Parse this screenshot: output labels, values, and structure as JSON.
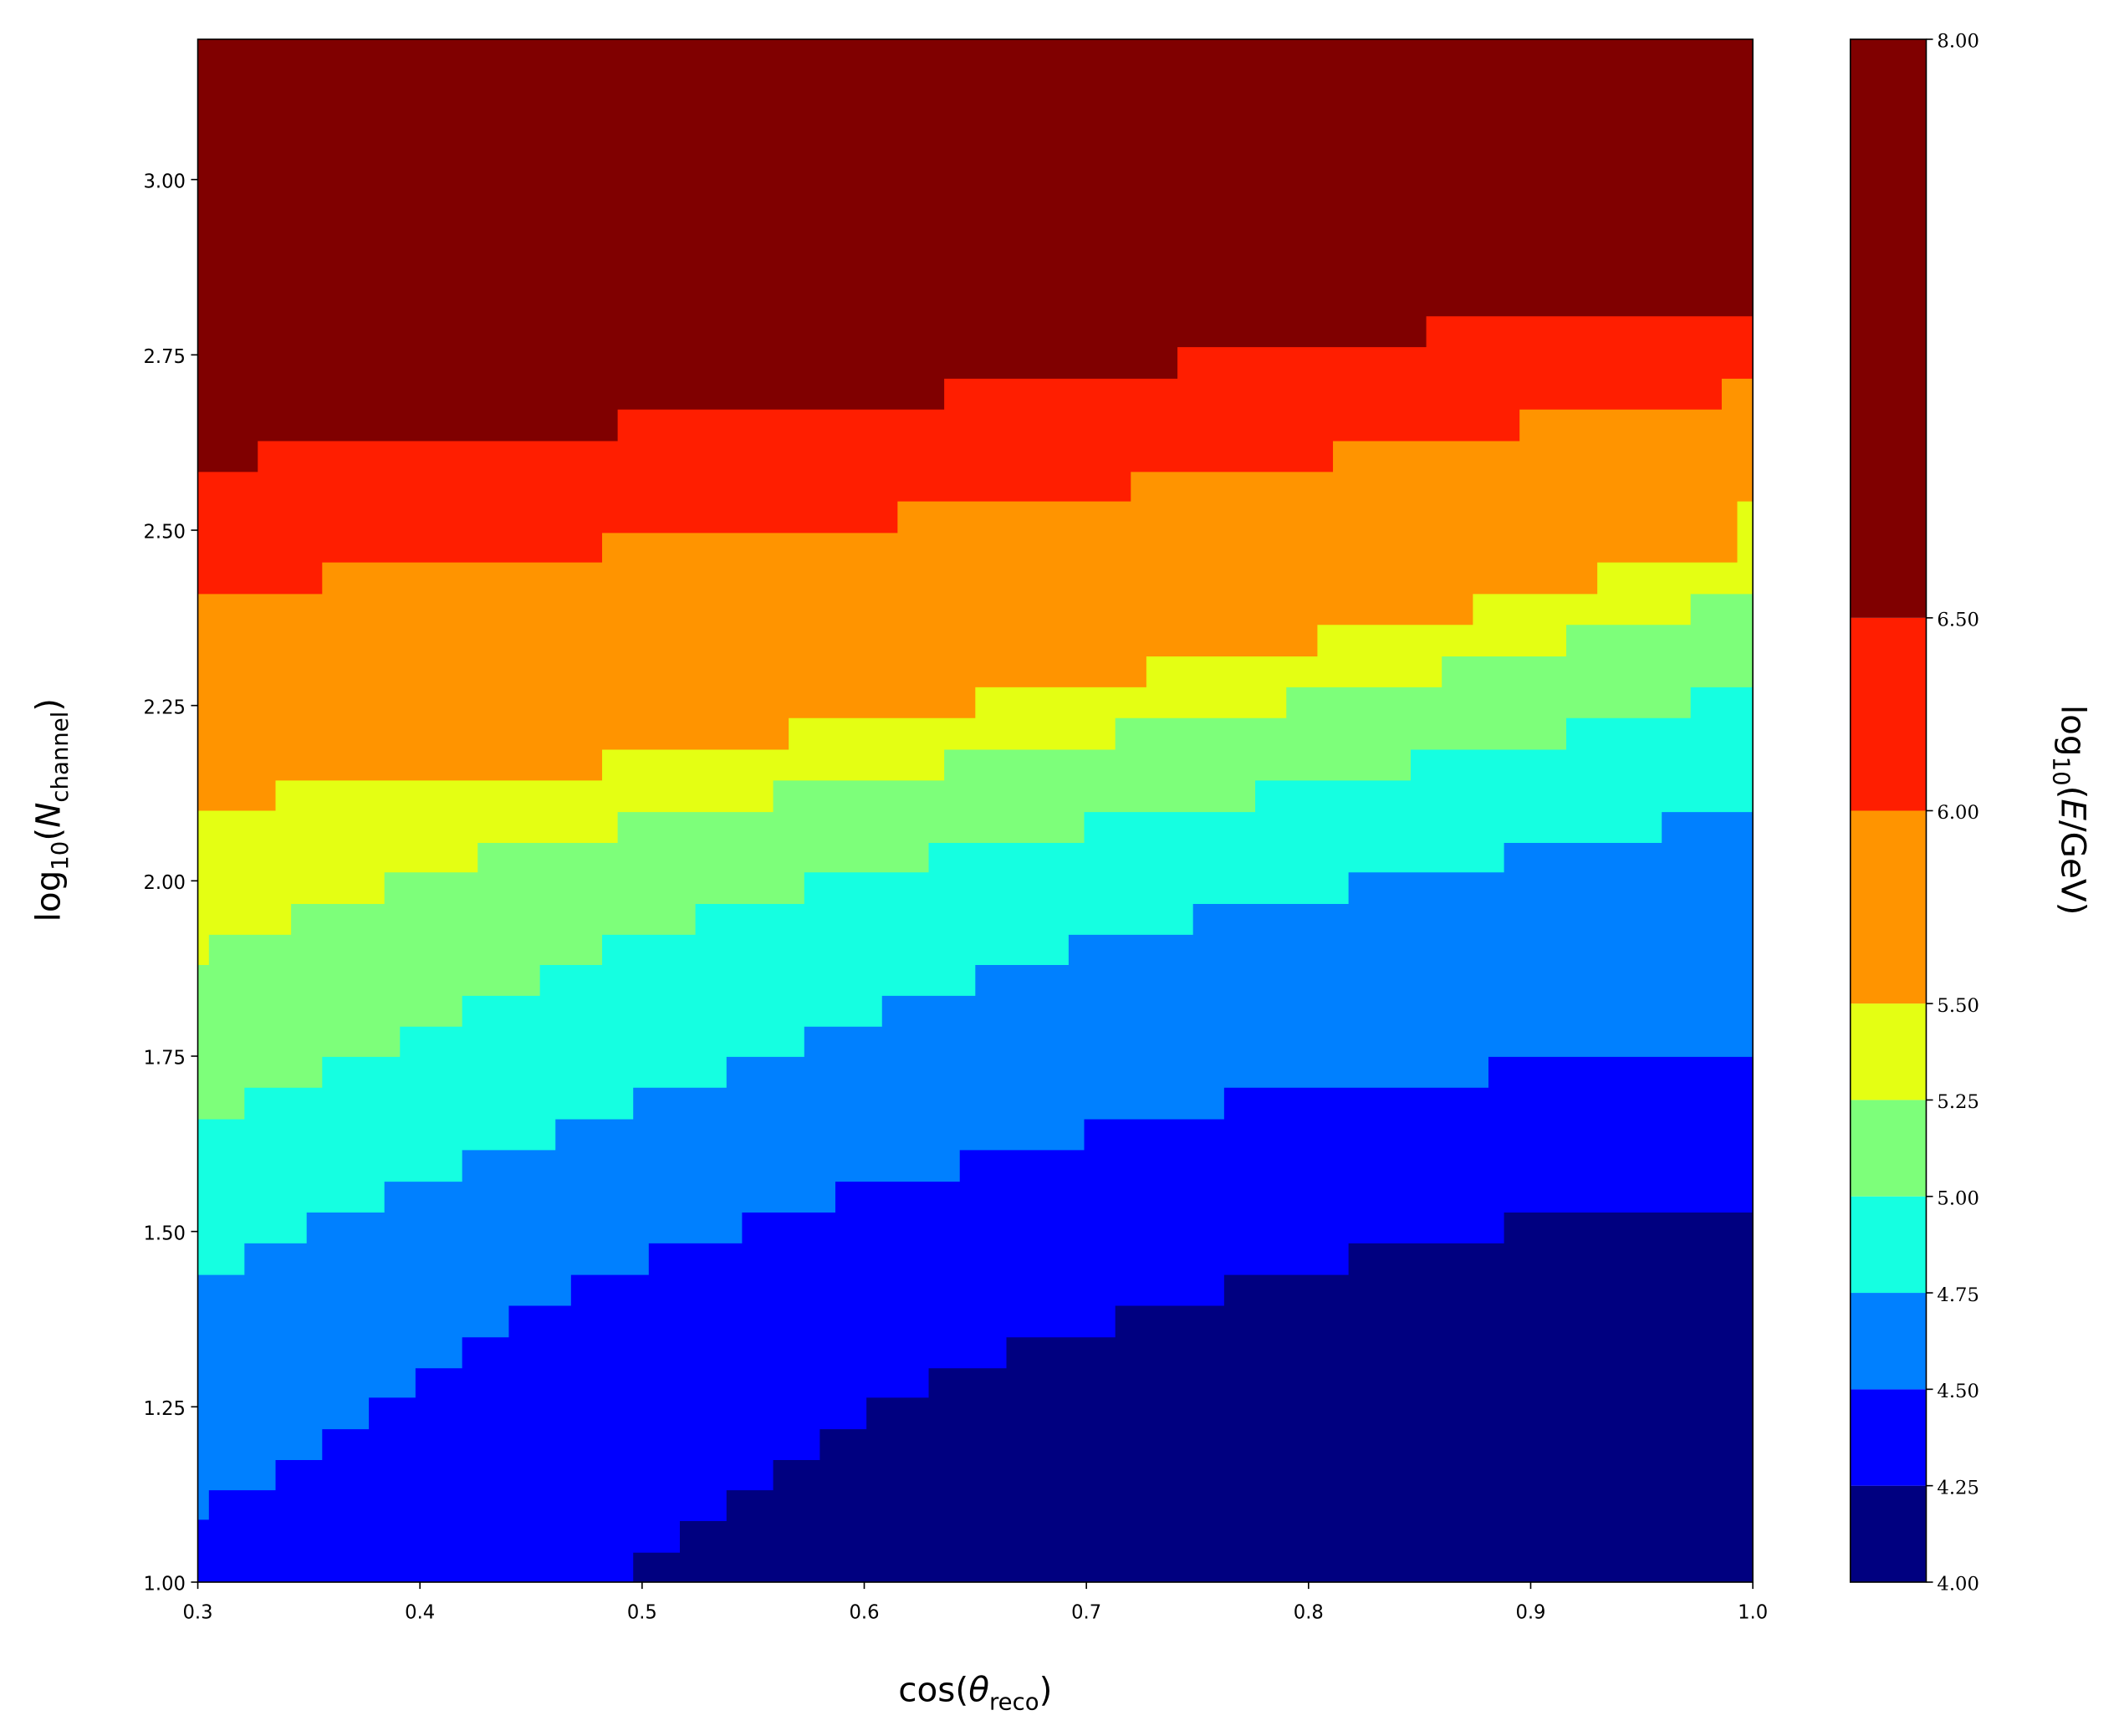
{
  "chart_data": {
    "type": "contourf",
    "xlabel": [
      "cos(",
      "θ",
      "reco",
      ")"
    ],
    "ylabel": [
      "log",
      "10",
      "(",
      "N",
      "channel",
      ")"
    ],
    "colorbar_label": [
      "log",
      "10",
      "(",
      "E",
      "/GeV)"
    ],
    "xlim": [
      0.3,
      1.0
    ],
    "ylim": [
      1.0,
      3.2
    ],
    "xticks": [
      0.3,
      0.4,
      0.5,
      0.6,
      0.7,
      0.8,
      0.9,
      {
        "value": 1.0,
        "label": "1.0"
      }
    ],
    "yticks": [
      {
        "value": 1.0,
        "label": "1.00"
      },
      {
        "value": 1.25,
        "label": "1.25"
      },
      {
        "value": 1.5,
        "label": "1.50"
      },
      {
        "value": 1.75,
        "label": "1.75"
      },
      {
        "value": 2.0,
        "label": "2.00"
      },
      {
        "value": 2.25,
        "label": "2.25"
      },
      {
        "value": 2.5,
        "label": "2.50"
      },
      {
        "value": 2.75,
        "label": "2.75"
      },
      {
        "value": 3.0,
        "label": "3.00"
      }
    ],
    "levels": [
      {
        "value": 4.0,
        "label": "4.00"
      },
      {
        "value": 4.25,
        "label": "4.25"
      },
      {
        "value": 4.5,
        "label": "4.50"
      },
      {
        "value": 4.75,
        "label": "4.75"
      },
      {
        "value": 5.0,
        "label": "5.00"
      },
      {
        "value": 5.25,
        "label": "5.25"
      },
      {
        "value": 5.5,
        "label": "5.50"
      },
      {
        "value": 6.0,
        "label": "6.00"
      },
      {
        "value": 6.5,
        "label": "6.50"
      },
      {
        "value": 8.0,
        "label": "8.00"
      }
    ],
    "colors": [
      "#000080",
      "#0000ff",
      "#0080ff",
      "#15ffe1",
      "#7dff7a",
      "#e4ff13",
      "#ff9400",
      "#ff1e00",
      "#800000"
    ],
    "boundaries": [
      {
        "level": 6.5,
        "x": [
          0.3,
          0.327,
          0.489,
          0.636,
          0.741,
          0.853
        ],
        "y": [
          2.583,
          2.627,
          2.672,
          2.716,
          2.761,
          2.805
        ]
      },
      {
        "level": 6.0,
        "x": [
          0.3,
          0.356,
          0.482,
          0.615,
          0.72,
          0.811,
          0.895,
          0.986
        ],
        "y": [
          2.409,
          2.454,
          2.496,
          2.541,
          2.583,
          2.627,
          2.672,
          2.716
        ]
      },
      {
        "level": 5.5,
        "x": [
          0.3,
          0.335,
          0.482,
          0.566,
          0.65,
          0.727,
          0.804,
          0.874,
          0.93,
          0.993
        ],
        "y": [
          2.1,
          2.143,
          2.187,
          2.232,
          2.276,
          2.32,
          2.365,
          2.409,
          2.454,
          2.541
        ]
      },
      {
        "level": 5.25,
        "x": [
          0.3,
          0.305,
          0.342,
          0.384,
          0.426,
          0.489,
          0.559,
          0.636,
          0.713,
          0.79,
          0.86,
          0.916,
          0.972
        ],
        "y": [
          1.88,
          1.923,
          1.967,
          2.012,
          2.054,
          2.098,
          2.143,
          2.187,
          2.232,
          2.276,
          2.32,
          2.365,
          2.409
        ]
      },
      {
        "level": 5.0,
        "x": [
          0.3,
          0.321,
          0.356,
          0.391,
          0.419,
          0.454,
          0.482,
          0.524,
          0.573,
          0.629,
          0.699,
          0.776,
          0.846,
          0.916,
          0.972
        ],
        "y": [
          1.66,
          1.705,
          1.749,
          1.792,
          1.836,
          1.88,
          1.923,
          1.967,
          2.012,
          2.054,
          2.098,
          2.143,
          2.187,
          2.232,
          2.276
        ]
      },
      {
        "level": 4.75,
        "x": [
          0.3,
          0.321,
          0.349,
          0.384,
          0.419,
          0.461,
          0.496,
          0.538,
          0.573,
          0.608,
          0.65,
          0.692,
          0.748,
          0.818,
          0.888,
          0.959
        ],
        "y": [
          1.438,
          1.483,
          1.527,
          1.571,
          1.616,
          1.66,
          1.705,
          1.749,
          1.792,
          1.836,
          1.88,
          1.923,
          1.967,
          2.012,
          2.054,
          2.098
        ]
      },
      {
        "level": 4.5,
        "x": [
          0.3,
          0.305,
          0.335,
          0.356,
          0.377,
          0.398,
          0.419,
          0.44,
          0.468,
          0.503,
          0.545,
          0.587,
          0.643,
          0.699,
          0.762,
          0.881
        ],
        "y": [
          1.089,
          1.131,
          1.174,
          1.218,
          1.263,
          1.305,
          1.349,
          1.394,
          1.438,
          1.483,
          1.527,
          1.571,
          1.616,
          1.66,
          1.705,
          1.749
        ]
      },
      {
        "level": 4.25,
        "x": [
          0.3,
          0.496,
          0.517,
          0.538,
          0.559,
          0.58,
          0.601,
          0.629,
          0.664,
          0.713,
          0.762,
          0.818,
          0.888
        ],
        "y": [
          1.0,
          1.042,
          1.087,
          1.131,
          1.174,
          1.218,
          1.263,
          1.305,
          1.349,
          1.394,
          1.438,
          1.483,
          1.527
        ]
      }
    ]
  }
}
